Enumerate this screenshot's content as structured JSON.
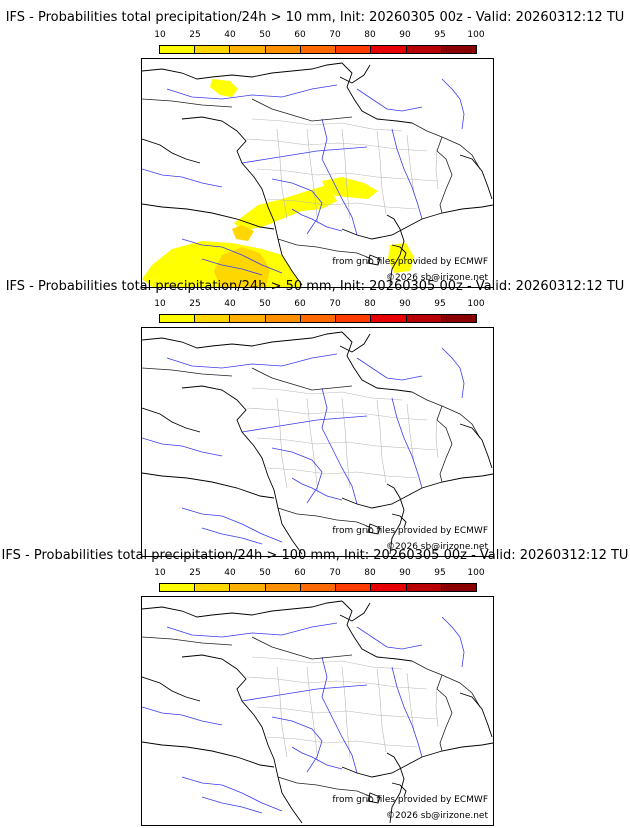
{
  "colorbar": {
    "ticks": [
      "10",
      "25",
      "40",
      "50",
      "60",
      "70",
      "80",
      "90",
      "95",
      "100"
    ],
    "colors": [
      "#ffff00",
      "#ffd700",
      "#ffb000",
      "#ff9000",
      "#ff6a00",
      "#ff3c00",
      "#e60000",
      "#b80000",
      "#8a0000",
      "#5c0000"
    ]
  },
  "panels": [
    {
      "title": "IFS - Probabilities total precipitation/24h > 10 mm, Init: 20260305 00z - Valid: 20260312:12 TU",
      "source_note": "from grib files provided by ECMWF",
      "copyright": "©2026 sb@irizone.net",
      "has_precip": true
    },
    {
      "title": "IFS - Probabilities total precipitation/24h > 50 mm, Init: 20260305 00z - Valid: 20260312:12 TU",
      "source_note": "from grib files provided by ECMWF",
      "copyright": "©2026 sb@irizone.net",
      "has_precip": false
    },
    {
      "title": "IFS - Probabilities total precipitation/24h > 100 mm, Init: 20260305 00z - Valid: 20260312:12 TU",
      "source_note": "from grib files provided by ECMWF",
      "copyright": "©2026 sb@irizone.net",
      "has_precip": false
    }
  ]
}
